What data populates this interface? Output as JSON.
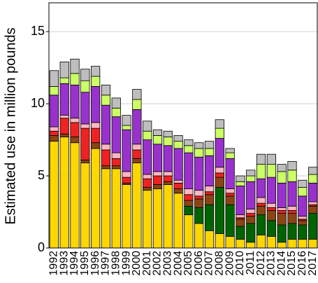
{
  "chart_data": {
    "type": "stacked-bar",
    "y_label": "Estimated use in million pounds",
    "categories": [
      "1992",
      "1993",
      "1994",
      "1995",
      "1996",
      "1997",
      "1998",
      "1999",
      "2000",
      "2001",
      "2002",
      "2003",
      "2004",
      "2005",
      "2006",
      "2007",
      "2008",
      "2009",
      "2010",
      "2011",
      "2012",
      "2013",
      "2014",
      "2015",
      "2016",
      "2017"
    ],
    "series": [
      {
        "color": "#ffd700",
        "values": [
          7.4,
          7.7,
          7.3,
          5.9,
          6.9,
          5.5,
          5.5,
          4.4,
          5.9,
          4.0,
          4.1,
          4.4,
          3.8,
          2.3,
          1.7,
          1.2,
          1.0,
          0.8,
          0.6,
          0.4,
          0.9,
          0.8,
          0.4,
          0.6,
          0.6,
          0.6
        ]
      },
      {
        "color": "#006400",
        "values": [
          0,
          0,
          0,
          0,
          0,
          0,
          0,
          0,
          0,
          0,
          0,
          0,
          0,
          0.6,
          1.1,
          1.8,
          3.2,
          2.2,
          0.9,
          1.3,
          1.4,
          1.1,
          1.2,
          1.1,
          1.0,
          1.8
        ]
      },
      {
        "color": "#8b4513",
        "values": [
          0.4,
          0.2,
          0.4,
          0.2,
          0.4,
          0.2,
          0.2,
          0.1,
          0.3,
          0.2,
          0.3,
          0.2,
          0.3,
          0.4,
          0.6,
          0.7,
          0.7,
          0.6,
          0.5,
          0.5,
          0.6,
          0.7,
          0.8,
          0.7,
          0.3,
          0.5
        ]
      },
      {
        "color": "#ee2222",
        "values": [
          0.3,
          1.1,
          1.0,
          2.2,
          1.0,
          1.1,
          0.5,
          0.4,
          0.6,
          0.6,
          0.6,
          0.4,
          0.4,
          0.4,
          0.2,
          0.2,
          0.3,
          0.2,
          0.1,
          0.2,
          0.2,
          0.2,
          0.2,
          0.2,
          0.1,
          0.1
        ]
      },
      {
        "color": "#ffb6c1",
        "values": [
          0.3,
          0.2,
          0.3,
          0.3,
          0.4,
          0.4,
          0.4,
          0.4,
          0.4,
          0.3,
          0.3,
          0.3,
          0.2,
          0.4,
          0.4,
          0.4,
          0.4,
          0.3,
          0.2,
          0.3,
          0.4,
          0.3,
          0.2,
          0.3,
          0.2,
          0.2
        ]
      },
      {
        "color": "#9932cc",
        "values": [
          2.2,
          2.2,
          2.3,
          2.2,
          2.5,
          2.7,
          2.5,
          2.9,
          2.4,
          2.4,
          1.9,
          1.8,
          2.2,
          2.5,
          2.3,
          2.1,
          2.0,
          2.1,
          2.0,
          1.9,
          1.3,
          1.8,
          1.7,
          1.7,
          1.4,
          1.3
        ]
      },
      {
        "color": "#ccff66",
        "values": [
          0.6,
          0.4,
          0.8,
          0.8,
          0.7,
          0.7,
          0.6,
          0.3,
          0.7,
          0.6,
          0.6,
          0.6,
          0.5,
          0.5,
          0.6,
          0.5,
          0.7,
          0.4,
          0.3,
          0.4,
          1.0,
          0.9,
          0.8,
          0.8,
          0.6,
          0.6
        ]
      },
      {
        "color": "#bebebe",
        "values": [
          1.1,
          1.1,
          1.0,
          0.8,
          0.7,
          0.7,
          0.7,
          0.7,
          0.7,
          0.7,
          0.4,
          0.4,
          0.4,
          0.4,
          0.4,
          0.5,
          0.6,
          0.3,
          0.4,
          0.4,
          0.7,
          0.7,
          0.5,
          0.6,
          0.5,
          0.5
        ]
      }
    ],
    "ylim": [
      0,
      17
    ],
    "yticks": [
      0,
      5,
      10,
      15
    ],
    "grid": true
  }
}
